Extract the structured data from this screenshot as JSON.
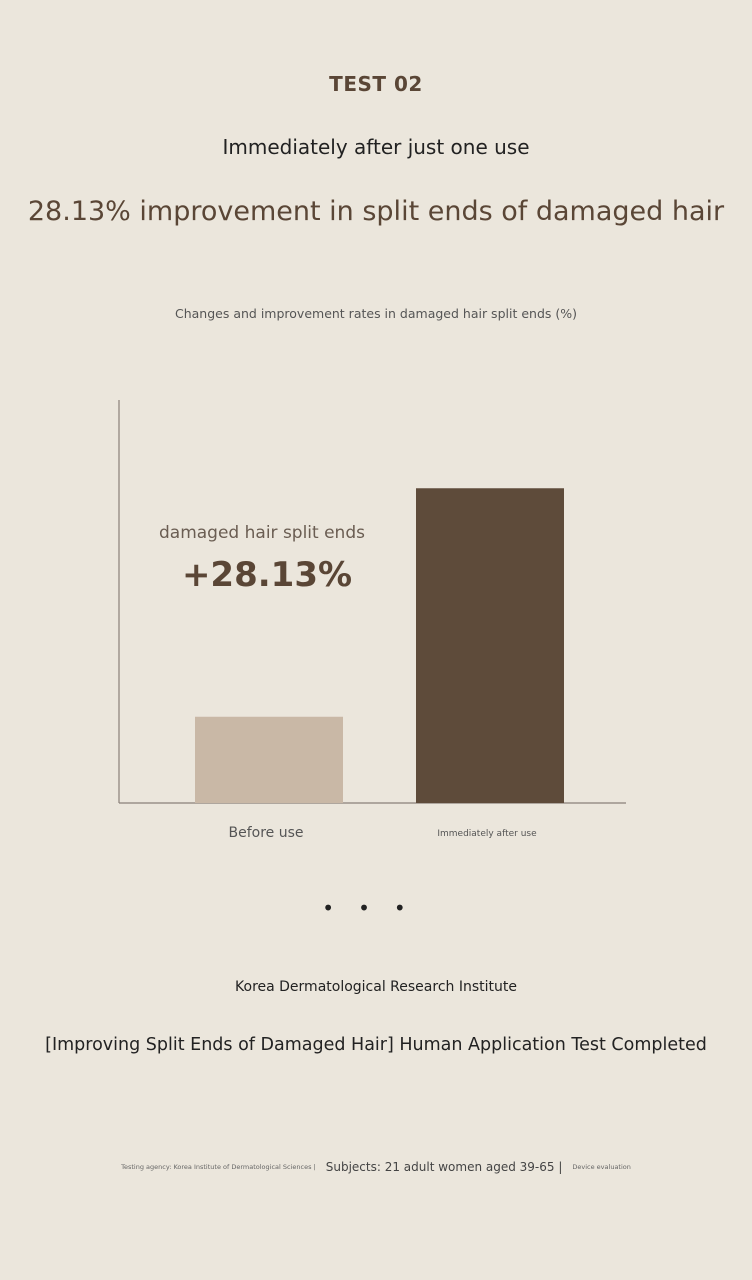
{
  "header": {
    "test_label": "TEST 02",
    "subtitle": "Immediately after just one use",
    "headline": "28.13% improvement in split ends of damaged hair"
  },
  "chart_data": {
    "type": "bar",
    "title": "Changes and improvement rates in damaged hair split ends (%)",
    "categories": [
      "Before use",
      "Immediately after use"
    ],
    "values": [
      21.4,
      78.1
    ],
    "ylim": [
      0,
      100
    ],
    "grid": false,
    "colors": [
      "#c9b8a6",
      "#5e4b3a"
    ],
    "annotation": {
      "label": "damaged hair split ends",
      "value": "+28.13%"
    }
  },
  "footer": {
    "institute": "Korea Dermatological Research Institute",
    "completed": "[Improving Split Ends of Damaged Hair] Human Application Test Completed",
    "agency": "Testing agency: Korea Institute of Dermatological Sciences |",
    "subjects": "Subjects: 21 adult women aged 39-65 |",
    "method": "Device evaluation"
  }
}
